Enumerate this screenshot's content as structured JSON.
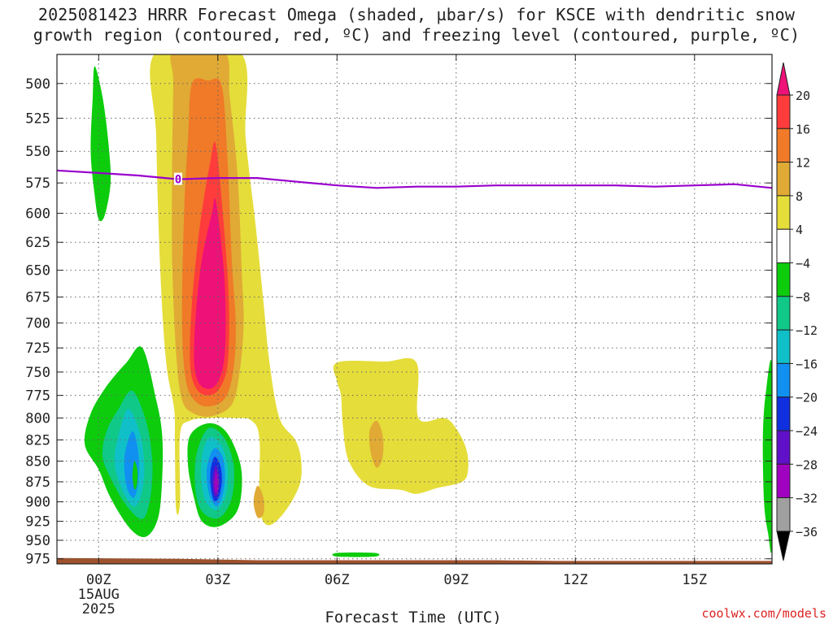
{
  "title": {
    "line1": "2025081423 HRRR Forecast Omega (shaded, µbar/s) for KSCE with dendritic snow",
    "line2": "growth region (contoured, red, ºC) and freezing level (contoured, purple, ºC)"
  },
  "watermark": "coolwx.com/models",
  "chart_data": {
    "type": "time-height cross section",
    "title": "2025081423 HRRR Forecast Omega (shaded, µbar/s) for KSCE with dendritic snow growth region (contoured, red, ºC) and freezing level (contoured, purple, ºC)",
    "xlabel": "Forecast Time (UTC)",
    "ylabel": "",
    "x_ticks": [
      {
        "hour": 0,
        "label": "00Z",
        "sub1": "15AUG",
        "sub2": "2025"
      },
      {
        "hour": 3,
        "label": "03Z",
        "sub1": "",
        "sub2": ""
      },
      {
        "hour": 6,
        "label": "06Z",
        "sub1": "",
        "sub2": ""
      },
      {
        "hour": 9,
        "label": "09Z",
        "sub1": "",
        "sub2": ""
      },
      {
        "hour": 12,
        "label": "12Z",
        "sub1": "",
        "sub2": ""
      },
      {
        "hour": 15,
        "label": "15Z",
        "sub1": "",
        "sub2": ""
      }
    ],
    "xlim": [
      -1.05,
      16.95
    ],
    "ylim_mb": [
      480,
      982
    ],
    "y_ticks": [
      500,
      525,
      550,
      575,
      600,
      625,
      650,
      675,
      700,
      725,
      750,
      775,
      800,
      825,
      850,
      875,
      900,
      925,
      950,
      975
    ],
    "y_scale": "log",
    "grid": true,
    "colorbar": {
      "levels": [
        20,
        16,
        12,
        8,
        4,
        -4,
        -8,
        -12,
        -16,
        -20,
        -24,
        -28,
        -32,
        -36
      ],
      "colors": [
        "#ff3c3c",
        "#f07a28",
        "#e0aa35",
        "#e5dd3a",
        "#ffffff",
        "#0ccc0c",
        "#10c888",
        "#10c0c8",
        "#1090f0",
        "#1030e0",
        "#6010c8",
        "#a000c0",
        "#a0a0a0"
      ],
      "top_color": "#ee1177",
      "bottom_color": "#000000"
    },
    "freezing_level": {
      "label": "0",
      "color": "#9900cc",
      "points": [
        [
          -1.05,
          565
        ],
        [
          0,
          567
        ],
        [
          1,
          569
        ],
        [
          2,
          572
        ],
        [
          3,
          571
        ],
        [
          4,
          571
        ],
        [
          5,
          574
        ],
        [
          6,
          577
        ],
        [
          7,
          579
        ],
        [
          8,
          578
        ],
        [
          9,
          578
        ],
        [
          10,
          577
        ],
        [
          11,
          577
        ],
        [
          12,
          577
        ],
        [
          13,
          577
        ],
        [
          14,
          578
        ],
        [
          15,
          577
        ],
        [
          16,
          576
        ],
        [
          16.95,
          579
        ]
      ]
    },
    "omega_regions": [
      {
        "value_range": [
          4,
          8
        ],
        "color": "#e5dd3a",
        "points": [
          [
            1.45,
            478
          ],
          [
            3.55,
            478
          ],
          [
            3.7,
            540
          ],
          [
            3.95,
            610
          ],
          [
            4.15,
            680
          ],
          [
            4.3,
            740
          ],
          [
            4.55,
            800
          ],
          [
            4.95,
            825
          ],
          [
            5.1,
            850
          ],
          [
            5.05,
            880
          ],
          [
            4.65,
            915
          ],
          [
            4.25,
            930
          ],
          [
            4.05,
            905
          ],
          [
            4.05,
            825
          ],
          [
            3.85,
            803
          ],
          [
            3.4,
            800
          ],
          [
            2.8,
            800
          ],
          [
            2.3,
            803
          ],
          [
            2.05,
            818
          ],
          [
            2.05,
            900
          ],
          [
            1.95,
            910
          ],
          [
            1.92,
            830
          ],
          [
            1.9,
            790
          ],
          [
            1.7,
            740
          ],
          [
            1.55,
            650
          ],
          [
            1.45,
            540
          ]
        ]
      },
      {
        "value_range": [
          4,
          8
        ],
        "color": "#e5dd3a",
        "points": [
          [
            6.0,
            740
          ],
          [
            7.2,
            739
          ],
          [
            8.0,
            740
          ],
          [
            8.05,
            800
          ],
          [
            8.7,
            800
          ],
          [
            9.0,
            812
          ],
          [
            9.25,
            835
          ],
          [
            9.3,
            860
          ],
          [
            9.15,
            875
          ],
          [
            8.5,
            883
          ],
          [
            8.0,
            890
          ],
          [
            7.6,
            885
          ],
          [
            6.8,
            880
          ],
          [
            6.3,
            850
          ],
          [
            6.15,
            810
          ],
          [
            6.1,
            775
          ],
          [
            6.0,
            760
          ]
        ]
      },
      {
        "value_range": [
          8,
          12
        ],
        "color": "#e0aa35",
        "points": [
          [
            1.9,
            478
          ],
          [
            3.15,
            478
          ],
          [
            3.3,
            510
          ],
          [
            3.5,
            570
          ],
          [
            3.6,
            650
          ],
          [
            3.65,
            700
          ],
          [
            3.55,
            750
          ],
          [
            3.35,
            785
          ],
          [
            2.85,
            798
          ],
          [
            2.4,
            795
          ],
          [
            2.1,
            780
          ],
          [
            1.95,
            730
          ],
          [
            1.85,
            640
          ],
          [
            1.85,
            560
          ],
          [
            1.88,
            500
          ]
        ]
      },
      {
        "value_range": [
          8,
          12
        ],
        "color": "#e0aa35",
        "points": [
          [
            7.0,
            803
          ],
          [
            7.15,
            820
          ],
          [
            7.15,
            845
          ],
          [
            7.0,
            858
          ],
          [
            6.85,
            840
          ],
          [
            6.82,
            815
          ]
        ]
      },
      {
        "value_range": [
          8,
          12
        ],
        "color": "#e0aa35",
        "points": [
          [
            4.0,
            880
          ],
          [
            4.15,
            895
          ],
          [
            4.15,
            915
          ],
          [
            4.0,
            920
          ],
          [
            3.9,
            900
          ]
        ]
      },
      {
        "value_range": [
          8,
          12
        ],
        "color": "#e0aa35",
        "points": [
          [
            1.0,
            838
          ],
          [
            1.12,
            850
          ],
          [
            1.1,
            880
          ],
          [
            1.0,
            900
          ],
          [
            0.9,
            880
          ],
          [
            0.9,
            850
          ]
        ]
      },
      {
        "value_range": [
          12,
          16
        ],
        "color": "#f07a28",
        "points": [
          [
            2.35,
            500
          ],
          [
            2.75,
            498
          ],
          [
            3.1,
            502
          ],
          [
            3.25,
            560
          ],
          [
            3.35,
            640
          ],
          [
            3.45,
            700
          ],
          [
            3.4,
            745
          ],
          [
            3.2,
            777
          ],
          [
            2.8,
            787
          ],
          [
            2.45,
            782
          ],
          [
            2.2,
            760
          ],
          [
            2.1,
            700
          ],
          [
            2.15,
            600
          ],
          [
            2.25,
            540
          ]
        ]
      },
      {
        "value_range": [
          16,
          20
        ],
        "color": "#ff3c3c",
        "points": [
          [
            2.95,
            545
          ],
          [
            3.15,
            610
          ],
          [
            3.28,
            680
          ],
          [
            3.25,
            740
          ],
          [
            3.05,
            767
          ],
          [
            2.75,
            775
          ],
          [
            2.45,
            767
          ],
          [
            2.3,
            740
          ],
          [
            2.35,
            680
          ],
          [
            2.55,
            610
          ],
          [
            2.8,
            560
          ]
        ]
      },
      {
        "value_range": [
          20,
          99
        ],
        "color": "#ee1177",
        "points": [
          [
            2.95,
            590
          ],
          [
            3.15,
            650
          ],
          [
            3.2,
            700
          ],
          [
            3.15,
            740
          ],
          [
            2.98,
            762
          ],
          [
            2.75,
            768
          ],
          [
            2.5,
            760
          ],
          [
            2.4,
            735
          ],
          [
            2.45,
            690
          ],
          [
            2.6,
            640
          ],
          [
            2.85,
            600
          ]
        ]
      },
      {
        "value_range": [
          -8,
          -4
        ],
        "color": "#0ccc0c",
        "points": [
          [
            -0.1,
            488
          ],
          [
            0.1,
            510
          ],
          [
            0.25,
            545
          ],
          [
            0.3,
            575
          ],
          [
            0.15,
            602
          ],
          [
            0.0,
            605
          ],
          [
            -0.1,
            585
          ],
          [
            -0.2,
            550
          ],
          [
            -0.15,
            510
          ]
        ]
      },
      {
        "value_range": [
          -8,
          -4
        ],
        "color": "#0ccc0c",
        "points": [
          [
            1.1,
            725
          ],
          [
            1.45,
            780
          ],
          [
            1.6,
            820
          ],
          [
            1.6,
            870
          ],
          [
            1.5,
            920
          ],
          [
            1.2,
            945
          ],
          [
            0.8,
            935
          ],
          [
            0.3,
            895
          ],
          [
            0.0,
            860
          ],
          [
            -0.35,
            830
          ],
          [
            -0.2,
            795
          ],
          [
            0.2,
            765
          ],
          [
            0.7,
            740
          ]
        ]
      },
      {
        "value_range": [
          -8,
          -4
        ],
        "color": "#0ccc0c",
        "points": [
          [
            2.3,
            820
          ],
          [
            2.75,
            806
          ],
          [
            3.2,
            815
          ],
          [
            3.55,
            850
          ],
          [
            3.6,
            885
          ],
          [
            3.45,
            915
          ],
          [
            3.0,
            932
          ],
          [
            2.6,
            925
          ],
          [
            2.4,
            895
          ],
          [
            2.25,
            855
          ]
        ]
      },
      {
        "value_range": [
          -8,
          -4
        ],
        "color": "#0ccc0c",
        "points": [
          [
            16.95,
            746
          ],
          [
            16.95,
            952
          ],
          [
            16.85,
            940
          ],
          [
            16.75,
            900
          ],
          [
            16.72,
            820
          ],
          [
            16.8,
            770
          ]
        ]
      },
      {
        "value_range": [
          -8,
          -4
        ],
        "color": "#0ccc0c",
        "points": [
          [
            6.0,
            967
          ],
          [
            6.95,
            967
          ],
          [
            6.95,
            972
          ],
          [
            6.0,
            972
          ]
        ]
      },
      {
        "value_range": [
          -12,
          -8
        ],
        "color": "#10c888",
        "points": [
          [
            0.85,
            770
          ],
          [
            1.2,
            805
          ],
          [
            1.35,
            850
          ],
          [
            1.3,
            895
          ],
          [
            1.1,
            922
          ],
          [
            0.7,
            905
          ],
          [
            0.35,
            875
          ],
          [
            0.1,
            845
          ],
          [
            0.2,
            815
          ],
          [
            0.5,
            790
          ]
        ]
      },
      {
        "value_range": [
          -12,
          -8
        ],
        "color": "#10c888",
        "points": [
          [
            2.75,
            812
          ],
          [
            3.15,
            822
          ],
          [
            3.4,
            855
          ],
          [
            3.35,
            895
          ],
          [
            3.05,
            920
          ],
          [
            2.65,
            915
          ],
          [
            2.45,
            890
          ],
          [
            2.45,
            845
          ]
        ]
      },
      {
        "value_range": [
          -16,
          -12
        ],
        "color": "#10c0c8",
        "points": [
          [
            0.75,
            790
          ],
          [
            1.05,
            820
          ],
          [
            1.15,
            860
          ],
          [
            1.05,
            895
          ],
          [
            0.85,
            905
          ],
          [
            0.55,
            880
          ],
          [
            0.4,
            850
          ],
          [
            0.5,
            820
          ]
        ]
      },
      {
        "value_range": [
          -16,
          -12
        ],
        "color": "#10c0c8",
        "points": [
          [
            2.8,
            822
          ],
          [
            3.1,
            832
          ],
          [
            3.25,
            860
          ],
          [
            3.2,
            892
          ],
          [
            2.98,
            910
          ],
          [
            2.7,
            900
          ],
          [
            2.58,
            870
          ],
          [
            2.62,
            840
          ]
        ]
      },
      {
        "value_range": [
          -20,
          -16
        ],
        "color": "#1090f0",
        "points": [
          [
            0.85,
            815
          ],
          [
            1.0,
            840
          ],
          [
            1.0,
            875
          ],
          [
            0.88,
            895
          ],
          [
            0.7,
            880
          ],
          [
            0.65,
            845
          ]
        ]
      },
      {
        "value_range": [
          -20,
          -16
        ],
        "color": "#1090f0",
        "points": [
          [
            2.9,
            835
          ],
          [
            3.12,
            845
          ],
          [
            3.18,
            870
          ],
          [
            3.1,
            895
          ],
          [
            2.95,
            905
          ],
          [
            2.78,
            890
          ],
          [
            2.72,
            860
          ]
        ]
      },
      {
        "value_range": [
          -24,
          -20
        ],
        "color": "#1030e0",
        "points": [
          [
            2.92,
            845
          ],
          [
            3.06,
            855
          ],
          [
            3.1,
            875
          ],
          [
            3.02,
            895
          ],
          [
            2.9,
            898
          ],
          [
            2.82,
            880
          ],
          [
            2.82,
            860
          ]
        ]
      },
      {
        "value_range": [
          -28,
          -24
        ],
        "color": "#6010c8",
        "points": [
          [
            2.94,
            855
          ],
          [
            3.02,
            865
          ],
          [
            3.04,
            880
          ],
          [
            2.98,
            893
          ],
          [
            2.9,
            890
          ],
          [
            2.87,
            872
          ]
        ]
      },
      {
        "value_range": [
          -32,
          -28
        ],
        "color": "#a000c0",
        "points": [
          [
            2.95,
            862
          ],
          [
            3.0,
            872
          ],
          [
            2.99,
            885
          ],
          [
            2.94,
            889
          ],
          [
            2.91,
            876
          ]
        ]
      },
      {
        "value_range": [
          -8,
          -4
        ],
        "color": "#0ccc0c",
        "points": [
          [
            0.9,
            850
          ],
          [
            0.98,
            862
          ],
          [
            0.96,
            880
          ],
          [
            0.9,
            884
          ],
          [
            0.85,
            868
          ]
        ]
      }
    ],
    "terrain": {
      "color": "#a0522d",
      "points": [
        [
          -1.05,
          974
        ],
        [
          2.0,
          975
        ],
        [
          4.0,
          977
        ],
        [
          6.0,
          977
        ],
        [
          10.0,
          977
        ],
        [
          11.5,
          978
        ],
        [
          16.95,
          978
        ]
      ]
    }
  }
}
